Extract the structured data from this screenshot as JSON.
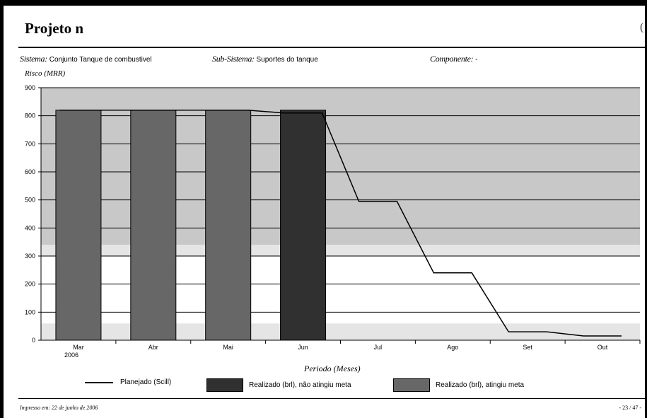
{
  "header": {
    "title": "Projeto n",
    "right_mark": "("
  },
  "info": {
    "sistema_label": "Sistema:",
    "sistema_value": "Conjunto Tanque de combustivel",
    "subsistema_label": "Sub-Sistema:",
    "subsistema_value": "Suportes do tanque",
    "componente_label": "Componente:",
    "componente_value": "-"
  },
  "legend": {
    "planned": "Planejado (Scill)",
    "realized_not_met": "Realizado (brl), não atingiu meta",
    "realized_met": "Realizado (brl), atingiu meta"
  },
  "footer": {
    "left": "Impresso em: 22 de junho de 2006",
    "right": "- 23 / 47 -"
  },
  "colors": {
    "band_high": "#c8c8c8",
    "band_mid": "#e5e5e5",
    "band_low": "#ffffff",
    "bar_met": "#676767",
    "bar_not_met": "#303030",
    "line": "#000000"
  },
  "chart_data": {
    "type": "bar",
    "ylabel": "Risco (MRR)",
    "xlabel": "Periodo (Meses)",
    "ylim": [
      0,
      900
    ],
    "yticks": [
      "0",
      "100",
      "200",
      "300",
      "400",
      "500",
      "600",
      "700",
      "800",
      "900"
    ],
    "categories": [
      "Mar",
      "Abr",
      "Mai",
      "Jun",
      "Jul",
      "Ago",
      "Set",
      "Out"
    ],
    "year_label": "2006",
    "bands": [
      {
        "from": 0,
        "to": 60,
        "color": "#e5e5e5"
      },
      {
        "from": 60,
        "to": 300,
        "color": "#ffffff"
      },
      {
        "from": 300,
        "to": 340,
        "color": "#e5e5e5"
      },
      {
        "from": 340,
        "to": 900,
        "color": "#c8c8c8"
      }
    ],
    "series": [
      {
        "name": "Realizado (brl), atingiu meta",
        "kind": "bar",
        "values": [
          820,
          820,
          820,
          null,
          null,
          null,
          null,
          null
        ]
      },
      {
        "name": "Realizado (brl), não atingiu meta",
        "kind": "bar",
        "values": [
          null,
          null,
          null,
          820,
          null,
          null,
          null,
          null
        ]
      },
      {
        "name": "Planejado (Scill)",
        "kind": "line",
        "values": [
          820,
          820,
          820,
          810,
          495,
          240,
          30,
          15
        ]
      }
    ],
    "grid": true
  }
}
